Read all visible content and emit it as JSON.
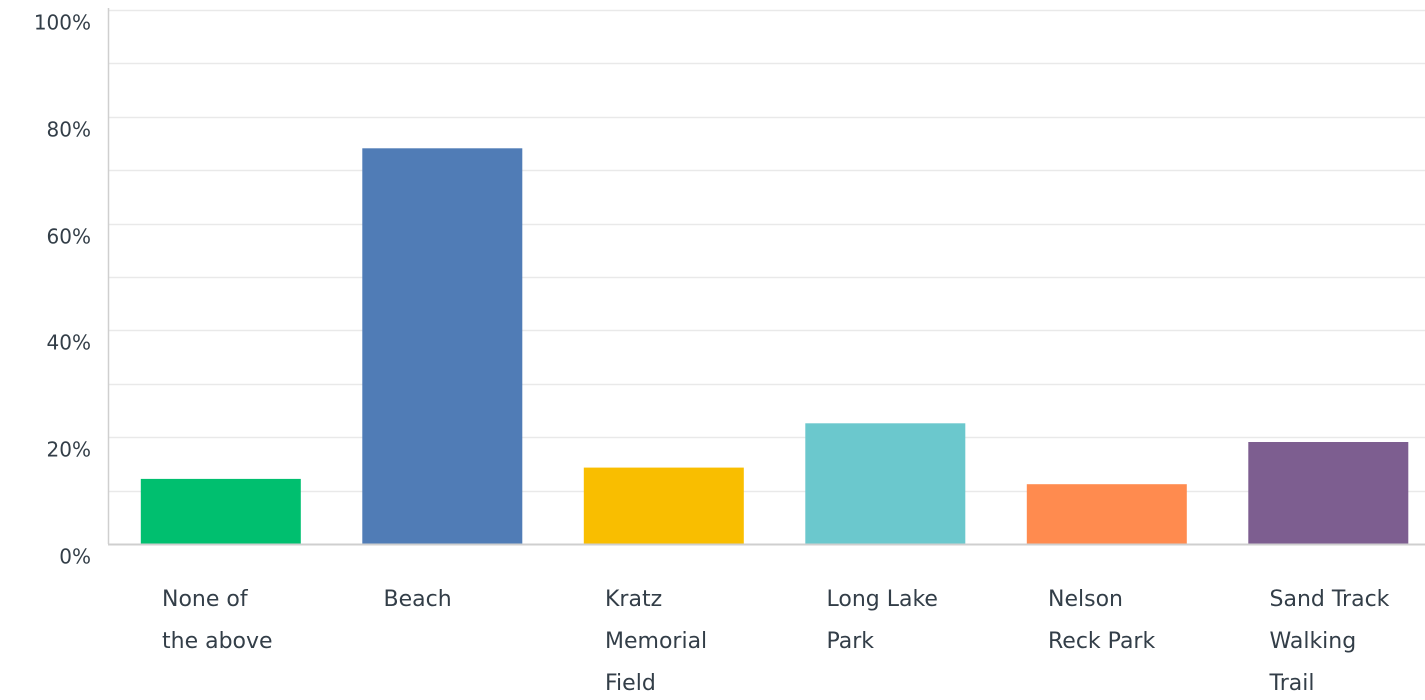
{
  "chart_data": {
    "type": "bar",
    "categories": [
      [
        "None of",
        "the above"
      ],
      [
        "Beach"
      ],
      [
        "Kratz",
        "Memorial",
        "Field"
      ],
      [
        "Long Lake",
        "Park"
      ],
      [
        "Nelson",
        "Reck Park"
      ],
      [
        "Sand Track",
        "Walking",
        "Trail"
      ]
    ],
    "values": [
      12.2,
      74.1,
      14.3,
      22.6,
      11.2,
      19.1
    ],
    "ylim": [
      0,
      100
    ],
    "yticks": [
      0,
      20,
      40,
      60,
      80,
      100
    ],
    "ytick_labels": [
      "0%",
      "20%",
      "40%",
      "60%",
      "80%",
      "100%"
    ],
    "minor_gridlines": [
      10,
      30,
      50,
      70,
      90
    ],
    "grid": true,
    "title": "",
    "xlabel": "",
    "ylabel": "",
    "colors": [
      "#00bf6f",
      "#507cb6",
      "#f9be00",
      "#6bc8cd",
      "#ff8b4f",
      "#7d5e90"
    ],
    "gridline_color": "#e9e9e9",
    "axis_color": "#cfcfcf",
    "tick_text_color": "#333e48",
    "label_text_color": "#333e48"
  }
}
